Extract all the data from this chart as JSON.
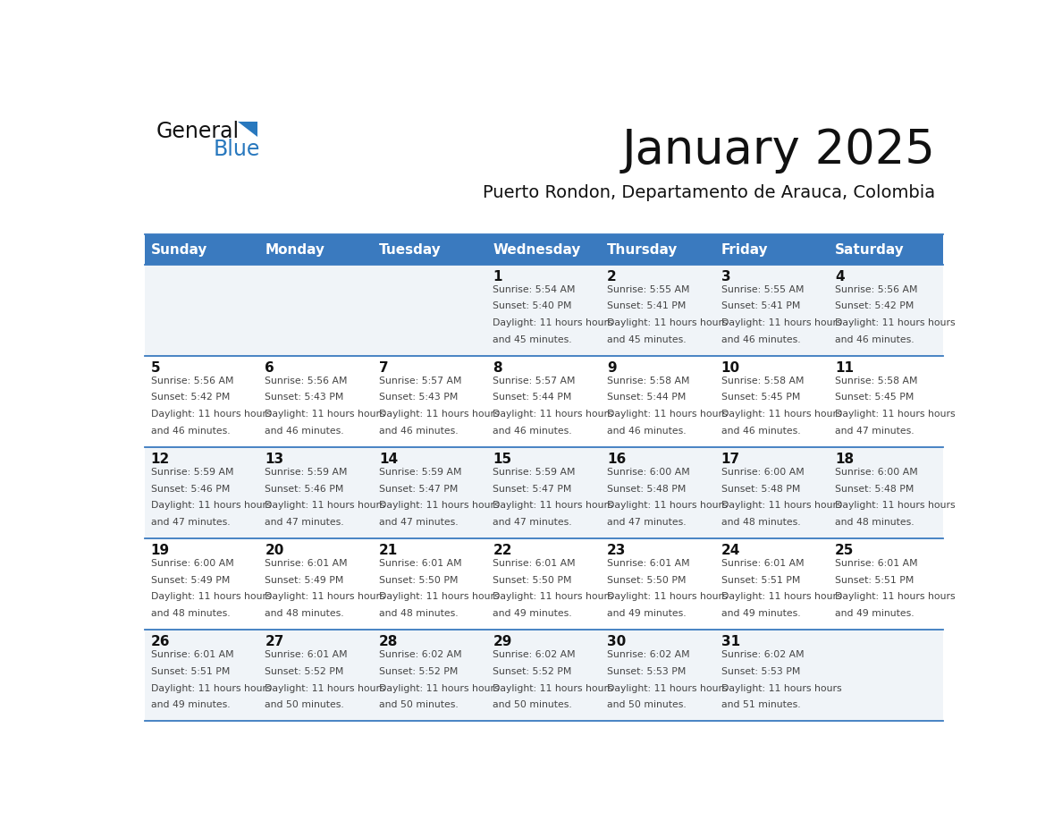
{
  "title": "January 2025",
  "subtitle": "Puerto Rondon, Departamento de Arauca, Colombia",
  "header_color": "#3a7abf",
  "header_text_color": "#ffffff",
  "text_color": "#333333",
  "line_color": "#3a7abf",
  "days_of_week": [
    "Sunday",
    "Monday",
    "Tuesday",
    "Wednesday",
    "Thursday",
    "Friday",
    "Saturday"
  ],
  "weeks": [
    [
      {
        "day": "",
        "sunrise": "",
        "sunset": "",
        "daylight": ""
      },
      {
        "day": "",
        "sunrise": "",
        "sunset": "",
        "daylight": ""
      },
      {
        "day": "",
        "sunrise": "",
        "sunset": "",
        "daylight": ""
      },
      {
        "day": "1",
        "sunrise": "5:54 AM",
        "sunset": "5:40 PM",
        "daylight": "11 hours and 45 minutes."
      },
      {
        "day": "2",
        "sunrise": "5:55 AM",
        "sunset": "5:41 PM",
        "daylight": "11 hours and 45 minutes."
      },
      {
        "day": "3",
        "sunrise": "5:55 AM",
        "sunset": "5:41 PM",
        "daylight": "11 hours and 46 minutes."
      },
      {
        "day": "4",
        "sunrise": "5:56 AM",
        "sunset": "5:42 PM",
        "daylight": "11 hours and 46 minutes."
      }
    ],
    [
      {
        "day": "5",
        "sunrise": "5:56 AM",
        "sunset": "5:42 PM",
        "daylight": "11 hours and 46 minutes."
      },
      {
        "day": "6",
        "sunrise": "5:56 AM",
        "sunset": "5:43 PM",
        "daylight": "11 hours and 46 minutes."
      },
      {
        "day": "7",
        "sunrise": "5:57 AM",
        "sunset": "5:43 PM",
        "daylight": "11 hours and 46 minutes."
      },
      {
        "day": "8",
        "sunrise": "5:57 AM",
        "sunset": "5:44 PM",
        "daylight": "11 hours and 46 minutes."
      },
      {
        "day": "9",
        "sunrise": "5:58 AM",
        "sunset": "5:44 PM",
        "daylight": "11 hours and 46 minutes."
      },
      {
        "day": "10",
        "sunrise": "5:58 AM",
        "sunset": "5:45 PM",
        "daylight": "11 hours and 46 minutes."
      },
      {
        "day": "11",
        "sunrise": "5:58 AM",
        "sunset": "5:45 PM",
        "daylight": "11 hours and 47 minutes."
      }
    ],
    [
      {
        "day": "12",
        "sunrise": "5:59 AM",
        "sunset": "5:46 PM",
        "daylight": "11 hours and 47 minutes."
      },
      {
        "day": "13",
        "sunrise": "5:59 AM",
        "sunset": "5:46 PM",
        "daylight": "11 hours and 47 minutes."
      },
      {
        "day": "14",
        "sunrise": "5:59 AM",
        "sunset": "5:47 PM",
        "daylight": "11 hours and 47 minutes."
      },
      {
        "day": "15",
        "sunrise": "5:59 AM",
        "sunset": "5:47 PM",
        "daylight": "11 hours and 47 minutes."
      },
      {
        "day": "16",
        "sunrise": "6:00 AM",
        "sunset": "5:48 PM",
        "daylight": "11 hours and 47 minutes."
      },
      {
        "day": "17",
        "sunrise": "6:00 AM",
        "sunset": "5:48 PM",
        "daylight": "11 hours and 48 minutes."
      },
      {
        "day": "18",
        "sunrise": "6:00 AM",
        "sunset": "5:48 PM",
        "daylight": "11 hours and 48 minutes."
      }
    ],
    [
      {
        "day": "19",
        "sunrise": "6:00 AM",
        "sunset": "5:49 PM",
        "daylight": "11 hours and 48 minutes."
      },
      {
        "day": "20",
        "sunrise": "6:01 AM",
        "sunset": "5:49 PM",
        "daylight": "11 hours and 48 minutes."
      },
      {
        "day": "21",
        "sunrise": "6:01 AM",
        "sunset": "5:50 PM",
        "daylight": "11 hours and 48 minutes."
      },
      {
        "day": "22",
        "sunrise": "6:01 AM",
        "sunset": "5:50 PM",
        "daylight": "11 hours and 49 minutes."
      },
      {
        "day": "23",
        "sunrise": "6:01 AM",
        "sunset": "5:50 PM",
        "daylight": "11 hours and 49 minutes."
      },
      {
        "day": "24",
        "sunrise": "6:01 AM",
        "sunset": "5:51 PM",
        "daylight": "11 hours and 49 minutes."
      },
      {
        "day": "25",
        "sunrise": "6:01 AM",
        "sunset": "5:51 PM",
        "daylight": "11 hours and 49 minutes."
      }
    ],
    [
      {
        "day": "26",
        "sunrise": "6:01 AM",
        "sunset": "5:51 PM",
        "daylight": "11 hours and 49 minutes."
      },
      {
        "day": "27",
        "sunrise": "6:01 AM",
        "sunset": "5:52 PM",
        "daylight": "11 hours and 50 minutes."
      },
      {
        "day": "28",
        "sunrise": "6:02 AM",
        "sunset": "5:52 PM",
        "daylight": "11 hours and 50 minutes."
      },
      {
        "day": "29",
        "sunrise": "6:02 AM",
        "sunset": "5:52 PM",
        "daylight": "11 hours and 50 minutes."
      },
      {
        "day": "30",
        "sunrise": "6:02 AM",
        "sunset": "5:53 PM",
        "daylight": "11 hours and 50 minutes."
      },
      {
        "day": "31",
        "sunrise": "6:02 AM",
        "sunset": "5:53 PM",
        "daylight": "11 hours and 51 minutes."
      },
      {
        "day": "",
        "sunrise": "",
        "sunset": "",
        "daylight": ""
      }
    ]
  ]
}
